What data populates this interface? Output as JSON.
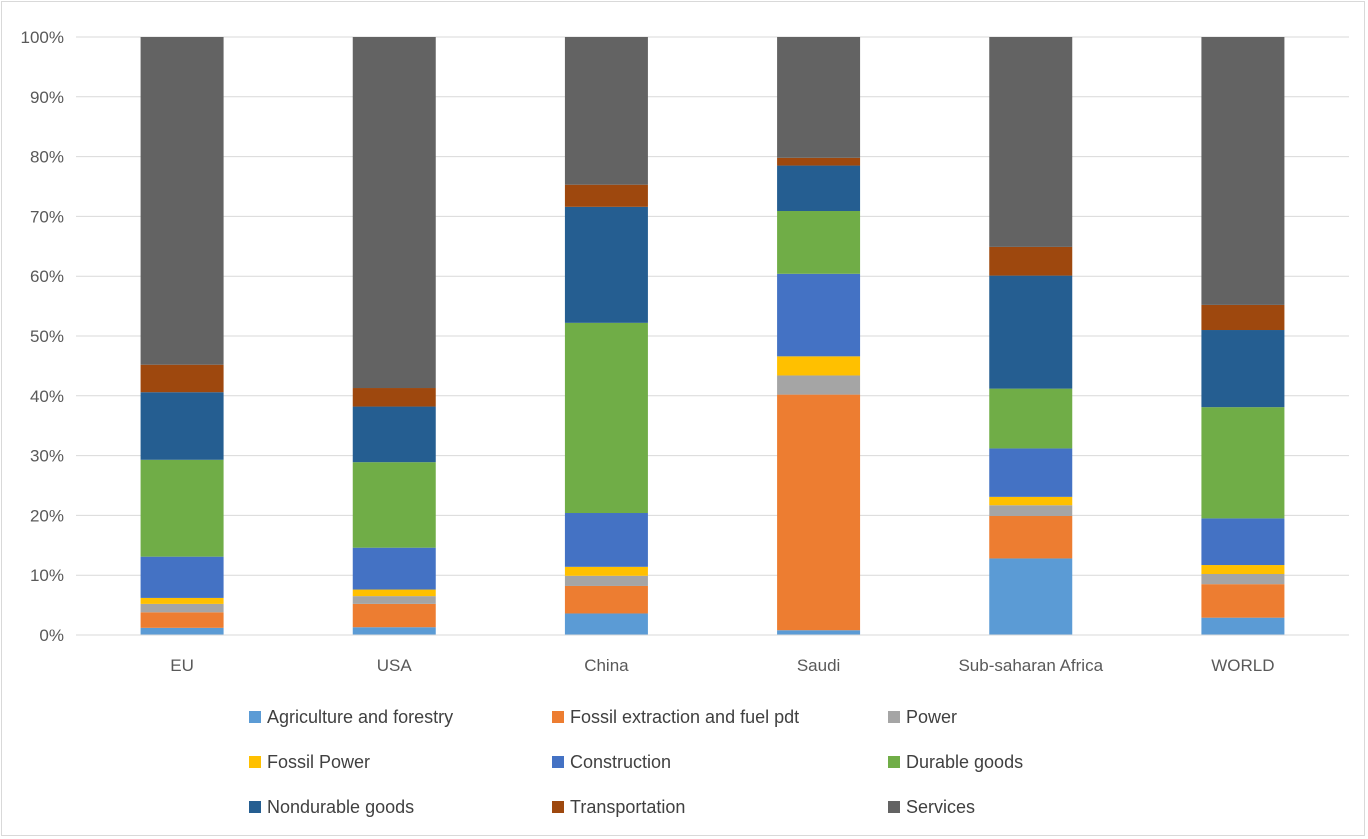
{
  "chart_data": {
    "type": "bar",
    "stacked": true,
    "percent": true,
    "categories": [
      "EU",
      "USA",
      "China",
      "Saudi",
      "Sub-saharan Africa",
      "WORLD"
    ],
    "ylim": [
      0,
      100
    ],
    "yticks": [
      "0%",
      "10%",
      "20%",
      "30%",
      "40%",
      "50%",
      "60%",
      "70%",
      "80%",
      "90%",
      "100%"
    ],
    "grid": true,
    "legend_position": "bottom",
    "series": [
      {
        "name": "Agriculture and forestry",
        "color": "#5b9bd5",
        "values": [
          1.2,
          1.3,
          3.6,
          0.8,
          12.8,
          2.9
        ]
      },
      {
        "name": "Fossil extraction and fuel pdt",
        "color": "#ed7d31",
        "values": [
          2.6,
          3.9,
          4.6,
          39.4,
          7.1,
          5.6
        ]
      },
      {
        "name": "Power",
        "color": "#a5a5a5",
        "values": [
          1.4,
          1.3,
          1.7,
          3.2,
          1.8,
          1.7
        ]
      },
      {
        "name": "Fossil Power",
        "color": "#ffc000",
        "values": [
          1.0,
          1.1,
          1.5,
          3.2,
          1.4,
          1.5
        ]
      },
      {
        "name": "Construction",
        "color": "#4472c4",
        "values": [
          6.9,
          7.0,
          9.0,
          13.8,
          8.1,
          7.8
        ]
      },
      {
        "name": "Durable goods",
        "color": "#70ad47",
        "values": [
          16.2,
          14.3,
          31.8,
          10.5,
          10.0,
          18.6
        ]
      },
      {
        "name": "Nondurable goods",
        "color": "#255e91",
        "values": [
          11.3,
          9.3,
          19.4,
          7.6,
          18.9,
          12.9
        ]
      },
      {
        "name": "Transportation",
        "color": "#9e480e",
        "values": [
          4.6,
          3.1,
          3.7,
          1.3,
          4.8,
          4.2
        ]
      },
      {
        "name": "Services",
        "color": "#636363",
        "values": [
          54.8,
          58.7,
          24.7,
          20.2,
          35.1,
          44.8
        ]
      }
    ]
  }
}
